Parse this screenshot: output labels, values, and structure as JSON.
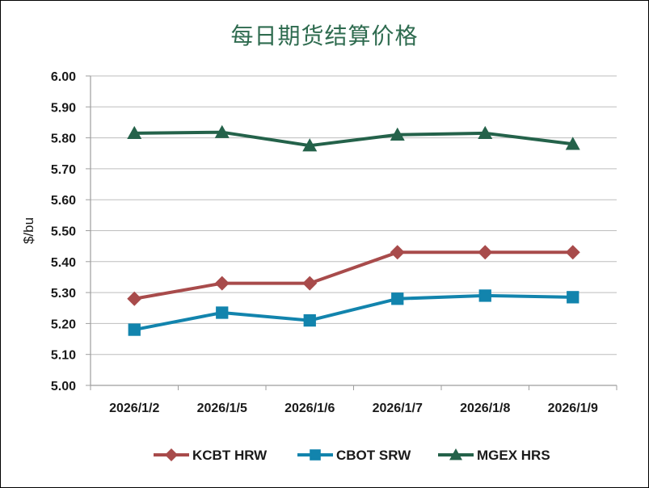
{
  "chart_data": {
    "type": "line",
    "title": "每日期货结算价格",
    "ylabel": "$/bu",
    "xlabel": "",
    "ylim": [
      5.0,
      6.0
    ],
    "y_ticks": [
      "5.00",
      "5.10",
      "5.20",
      "5.30",
      "5.40",
      "5.50",
      "5.60",
      "5.70",
      "5.80",
      "5.90",
      "6.00"
    ],
    "categories": [
      "2026/1/2",
      "2026/1/5",
      "2026/1/6",
      "2026/1/7",
      "2026/1/8",
      "2026/1/9"
    ],
    "grid": "horizontal",
    "legend_position": "bottom",
    "series": [
      {
        "name": "KCBT HRW",
        "marker": "diamond",
        "color": "#a84b4b",
        "values": [
          5.28,
          5.33,
          5.33,
          5.43,
          5.43,
          5.43
        ]
      },
      {
        "name": "CBOT SRW",
        "marker": "square",
        "color": "#1284ad",
        "values": [
          5.18,
          5.235,
          5.21,
          5.28,
          5.29,
          5.285
        ]
      },
      {
        "name": "MGEX HRS",
        "marker": "triangle",
        "color": "#24624a",
        "values": [
          5.815,
          5.818,
          5.775,
          5.81,
          5.815,
          5.78
        ]
      }
    ]
  }
}
